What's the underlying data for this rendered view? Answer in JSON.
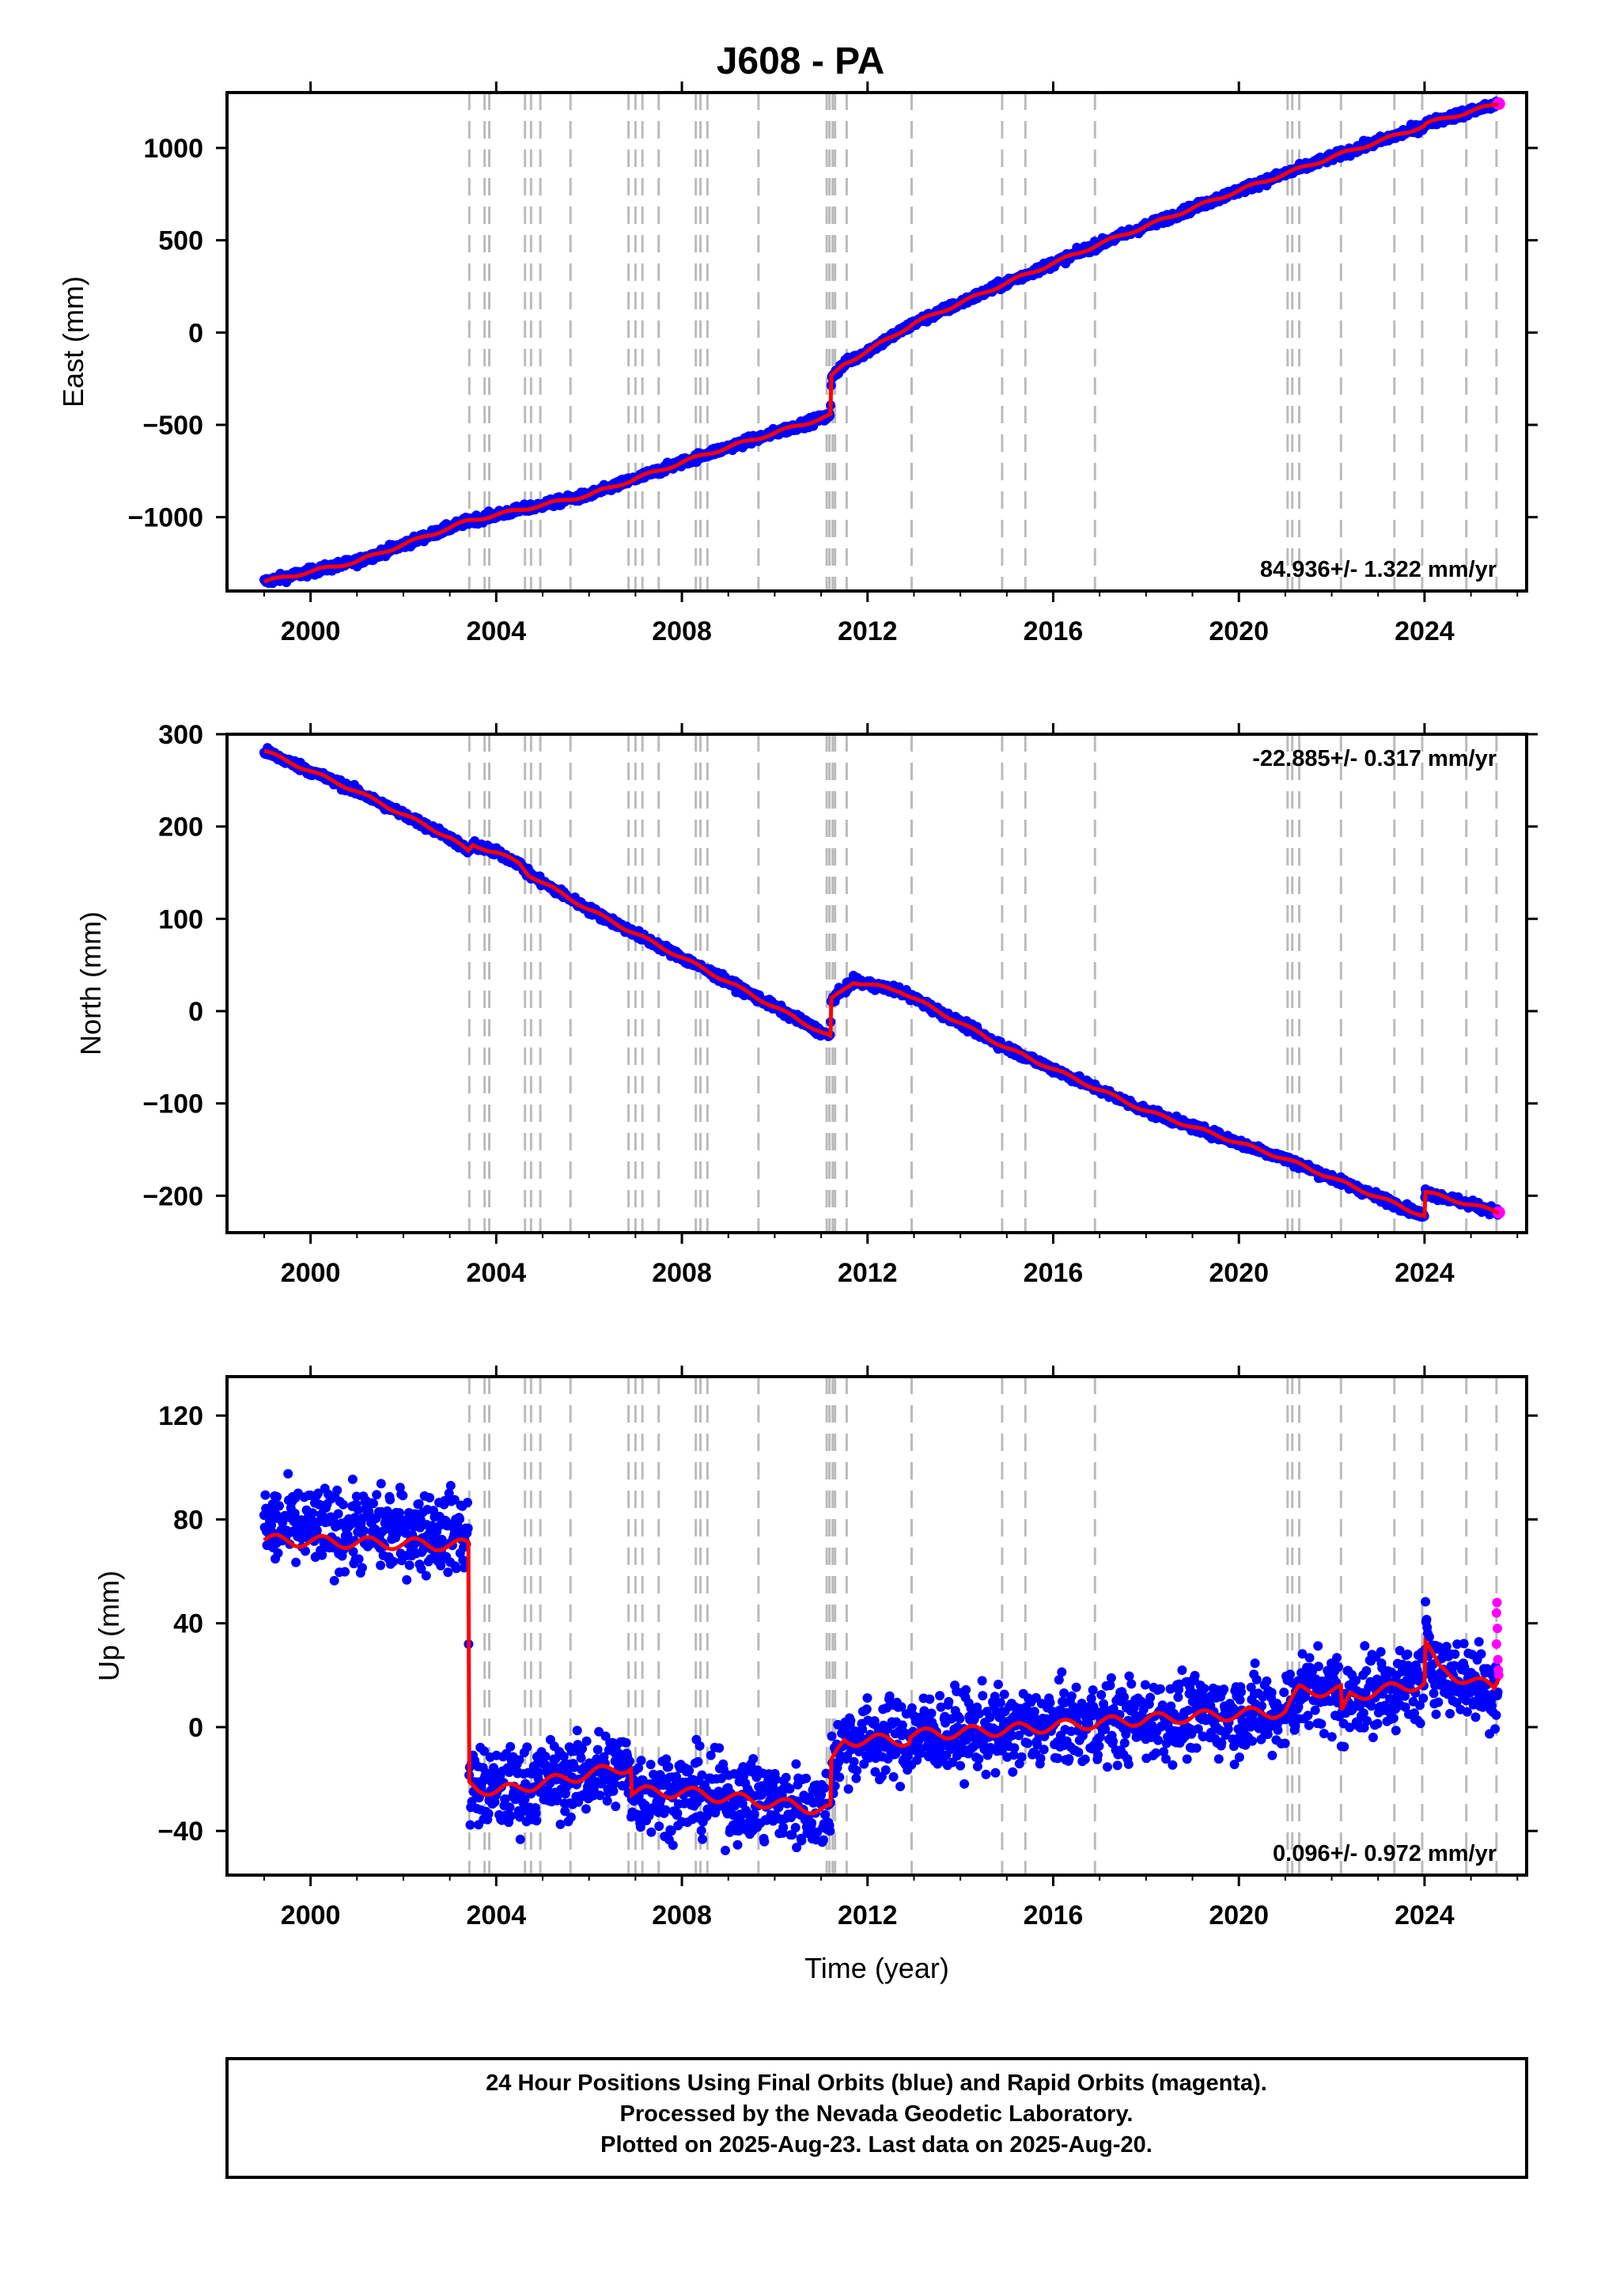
{
  "title": "J608 - PA",
  "footer": {
    "line1": "24 Hour Positions Using Final Orbits (blue) and Rapid Orbits (magenta).",
    "line2": "Processed by the Nevada Geodetic Laboratory.",
    "line3": "Plotted on 2025-Aug-23. Last data on 2025-Aug-20."
  },
  "colors": {
    "final_orbits": "#0000ff",
    "rapid_orbits": "#ff00ff",
    "model": "#ff0000",
    "events": "#bbbbbb"
  },
  "chart_data": [
    {
      "type": "scatter",
      "ylabel": "East (mm)",
      "xlabel": "",
      "xlim": [
        1998.2,
        2026.2
      ],
      "ylim": [
        -1400,
        1300
      ],
      "x_ticks": [
        2000,
        2004,
        2008,
        2012,
        2016,
        2020,
        2024
      ],
      "y_ticks": [
        -1000,
        -500,
        0,
        500,
        1000
      ],
      "y_tick_labels": [
        "−1000",
        "−500",
        "0",
        "500",
        "1000"
      ],
      "rate_text": "84.936+/- 1.322 mm/yr",
      "rate_position": "bottom-right",
      "model_points": [
        [
          1999.0,
          -1350
        ],
        [
          2001.0,
          -1240
        ],
        [
          2003.4,
          -1020
        ],
        [
          2006.0,
          -880
        ],
        [
          2008.5,
          -660
        ],
        [
          2011.2,
          -450
        ],
        [
          2011.22,
          -240
        ],
        [
          2011.5,
          -170
        ],
        [
          2012.0,
          -100
        ],
        [
          2013.0,
          50
        ],
        [
          2015.0,
          270
        ],
        [
          2017.0,
          480
        ],
        [
          2020.0,
          770
        ],
        [
          2022.0,
          950
        ],
        [
          2024.0,
          1120
        ],
        [
          2024.01,
          1130
        ],
        [
          2025.6,
          1240
        ]
      ],
      "series": [
        {
          "name": "Final Orbits",
          "values": "dense daily positions closely following the model"
        }
      ]
    },
    {
      "type": "scatter",
      "ylabel": "North (mm)",
      "xlabel": "",
      "xlim": [
        1998.2,
        2026.2
      ],
      "ylim": [
        -240,
        300
      ],
      "x_ticks": [
        2000,
        2004,
        2008,
        2012,
        2016,
        2020,
        2024
      ],
      "y_ticks": [
        -200,
        -100,
        0,
        100,
        200,
        300
      ],
      "y_tick_labels": [
        "−200",
        "−100",
        "0",
        "100",
        "200",
        "300"
      ],
      "rate_text": "-22.885+/- 0.317 mm/yr",
      "rate_position": "top-right",
      "model_points": [
        [
          1999.0,
          282
        ],
        [
          2001.0,
          238
        ],
        [
          2003.0,
          188
        ],
        [
          2003.4,
          173
        ],
        [
          2003.5,
          180
        ],
        [
          2004.0,
          172
        ],
        [
          2004.5,
          160
        ],
        [
          2004.7,
          148
        ],
        [
          2006.0,
          110
        ],
        [
          2008.5,
          45
        ],
        [
          2011.2,
          -28
        ],
        [
          2011.21,
          12
        ],
        [
          2011.7,
          32
        ],
        [
          2012.7,
          22
        ],
        [
          2015.0,
          -40
        ],
        [
          2018.0,
          -108
        ],
        [
          2021.0,
          -160
        ],
        [
          2024.0,
          -222
        ],
        [
          2024.01,
          -196
        ],
        [
          2025.6,
          -218
        ]
      ],
      "series": [
        {
          "name": "Final Orbits",
          "values": "dense daily positions closely following the model"
        }
      ]
    },
    {
      "type": "scatter",
      "ylabel": "Up (mm)",
      "xlabel": "Time (year)",
      "xlim": [
        1998.2,
        2026.2
      ],
      "ylim": [
        -57,
        135
      ],
      "x_ticks": [
        2000,
        2004,
        2008,
        2012,
        2016,
        2020,
        2024
      ],
      "y_ticks": [
        -40,
        0,
        40,
        80,
        120
      ],
      "y_tick_labels": [
        "−40",
        "0",
        "40",
        "80",
        "120"
      ],
      "rate_text": "0.096+/- 0.972 mm/yr",
      "rate_position": "bottom-right",
      "model_points": [
        [
          1999.0,
          72
        ],
        [
          2003.4,
          70
        ],
        [
          2003.41,
          -22
        ],
        [
          2004.0,
          -25
        ],
        [
          2006.0,
          -18
        ],
        [
          2006.9,
          -15
        ],
        [
          2006.91,
          -25
        ],
        [
          2008.0,
          -25
        ],
        [
          2011.2,
          -32
        ],
        [
          2011.21,
          -15
        ],
        [
          2011.5,
          -5
        ],
        [
          2012.9,
          -5
        ],
        [
          2012.91,
          -3
        ],
        [
          2015.0,
          -1
        ],
        [
          2018.0,
          3
        ],
        [
          2021.0,
          6
        ],
        [
          2021.3,
          14
        ],
        [
          2022.2,
          14
        ],
        [
          2022.21,
          4
        ],
        [
          2022.4,
          12
        ],
        [
          2024.0,
          17
        ],
        [
          2024.01,
          33
        ],
        [
          2024.3,
          22
        ],
        [
          2025.5,
          15
        ],
        [
          2025.6,
          20
        ]
      ],
      "scatter_spread": "large vertical scatter of roughly ±15 mm around the model",
      "rapid_points": [
        [
          2025.55,
          32
        ],
        [
          2025.55,
          44
        ],
        [
          2025.56,
          48
        ],
        [
          2025.57,
          38
        ],
        [
          2025.58,
          26
        ],
        [
          2025.59,
          22
        ],
        [
          2025.6,
          20
        ]
      ],
      "series": [
        {
          "name": "Final Orbits",
          "values": "dense daily positions scattered around the model"
        },
        {
          "name": "Rapid Orbits",
          "values": "short final segment near 2025.6"
        }
      ]
    }
  ],
  "event_years": [
    2003.42,
    2003.75,
    2003.85,
    2004.62,
    2004.75,
    2004.95,
    2005.6,
    2006.85,
    2007.0,
    2007.15,
    2007.5,
    2008.3,
    2008.4,
    2008.55,
    2009.65,
    2011.12,
    2011.18,
    2011.25,
    2011.3,
    2011.55,
    2012.95,
    2014.9,
    2015.4,
    2016.9,
    2021.05,
    2021.15,
    2021.3,
    2022.2,
    2023.35,
    2023.95,
    2024.9,
    2025.55
  ]
}
